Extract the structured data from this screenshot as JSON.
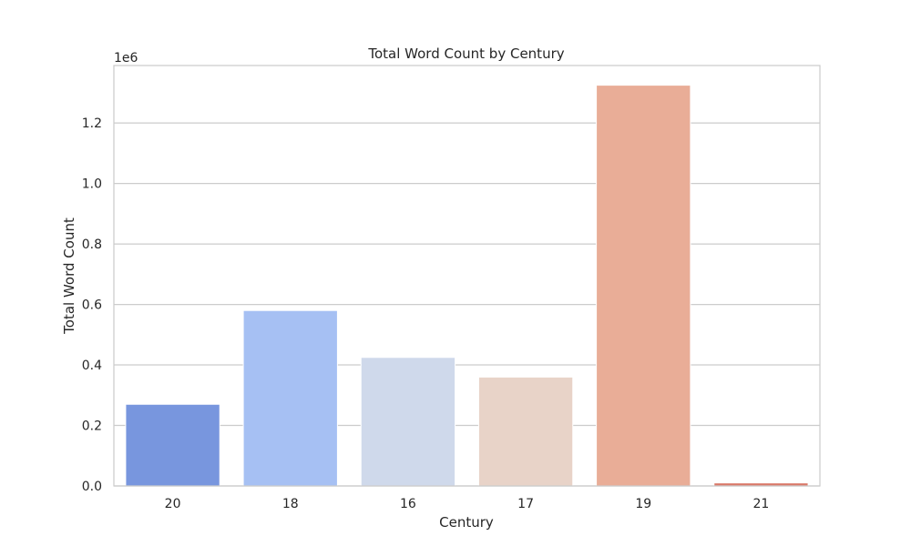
{
  "chart_data": {
    "type": "bar",
    "title": "Total Word Count by Century",
    "xlabel": "Century",
    "ylabel": "Total Word Count",
    "y_multiplier_label": "1e6",
    "categories": [
      "20",
      "18",
      "16",
      "17",
      "19",
      "21"
    ],
    "values": [
      0.27,
      0.58,
      0.425,
      0.36,
      1.325,
      0.01
    ],
    "colors": [
      "#7896de",
      "#a6c0f3",
      "#cfd9eb",
      "#e8d3c8",
      "#e9ad97",
      "#d97868"
    ],
    "ylim": [
      0,
      1.39
    ],
    "yticks": [
      0.0,
      0.2,
      0.4,
      0.6,
      0.8,
      1.0,
      1.2
    ],
    "ytick_labels": [
      "0.0",
      "0.2",
      "0.4",
      "0.6",
      "0.8",
      "1.0",
      "1.2"
    ],
    "grid": true,
    "grid_axis": "y"
  }
}
